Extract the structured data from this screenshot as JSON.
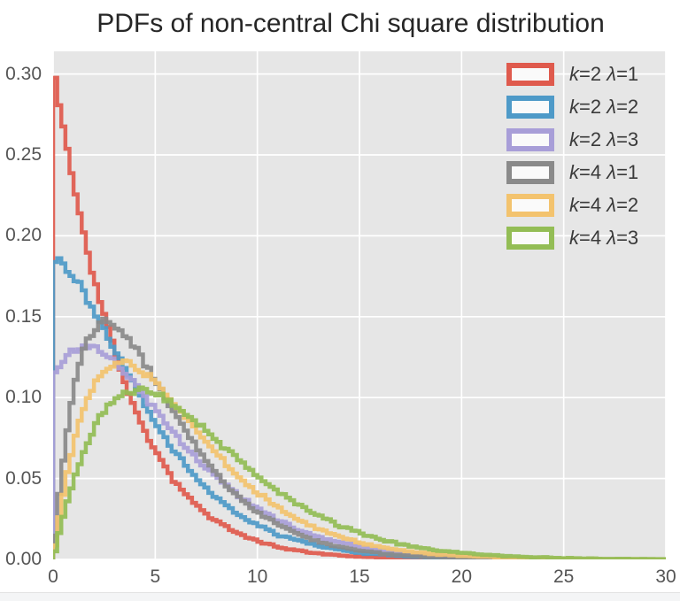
{
  "page": {
    "background": "#ffffff",
    "bottom_strip_color": "#f4f5f6"
  },
  "chart_data": {
    "type": "line",
    "render_style": "step-histogram",
    "title": "PDFs of non-central Chi square distribution",
    "xlabel": "",
    "ylabel": "",
    "xlim": [
      0,
      30
    ],
    "ylim": [
      0,
      0.314
    ],
    "xticks": {
      "values": [
        0,
        5,
        10,
        15,
        20,
        25,
        30
      ],
      "labels": [
        "0",
        "5",
        "10",
        "15",
        "20",
        "25",
        "30"
      ]
    },
    "yticks": {
      "values": [
        0,
        0.05,
        0.1,
        0.15,
        0.2,
        0.25,
        0.3
      ],
      "labels": [
        "0.00",
        "0.05",
        "0.10",
        "0.15",
        "0.20",
        "0.25",
        "0.30"
      ]
    },
    "grid": true,
    "legend_position": "upper-right",
    "bin_width": 0.2,
    "colors": {
      "plot_background": "#e6e6e6",
      "grid": "#ffffff",
      "tick_labels": "#555555",
      "title": "#262626"
    },
    "series": [
      {
        "label": "k=2 λ=1",
        "distribution": "noncentral-chi-square",
        "k": 2,
        "lambda": 1,
        "color": "#df5a4d",
        "key_points": {
          "y_at_x0": 0.303,
          "peak_x": 0.0,
          "peak_y": 0.303,
          "y_at_x5": 0.052,
          "y_at_x10": 0.013,
          "near_zero_by_x": 15
        }
      },
      {
        "label": "k=2 λ=2",
        "distribution": "noncentral-chi-square",
        "k": 2,
        "lambda": 2,
        "color": "#4e9ac8",
        "key_points": {
          "y_at_x0": 0.184,
          "peak_x": 0.0,
          "peak_y": 0.184,
          "y_at_x5": 0.074,
          "y_at_x10": 0.017,
          "near_zero_by_x": 18
        }
      },
      {
        "label": "k=2 λ=3",
        "distribution": "noncentral-chi-square",
        "k": 2,
        "lambda": 3,
        "color": "#a89ed8",
        "key_points": {
          "y_at_x0": 0.112,
          "peak_x": 2.2,
          "peak_y": 0.128,
          "y_at_x5": 0.089,
          "y_at_x10": 0.022,
          "near_zero_by_x": 18
        }
      },
      {
        "label": "k=4 λ=1",
        "distribution": "noncentral-chi-square",
        "k": 4,
        "lambda": 1,
        "color": "#8a8a8a",
        "key_points": {
          "y_at_x0": 0.0,
          "peak_x": 2.6,
          "peak_y": 0.147,
          "y_at_x5": 0.093,
          "y_at_x10": 0.023,
          "near_zero_by_x": 19
        }
      },
      {
        "label": "k=4 λ=2",
        "distribution": "noncentral-chi-square",
        "k": 4,
        "lambda": 2,
        "color": "#f3c36e",
        "key_points": {
          "y_at_x0": 0.0,
          "peak_x": 3.3,
          "peak_y": 0.123,
          "y_at_x5": 0.102,
          "y_at_x10": 0.032,
          "near_zero_by_x": 21
        }
      },
      {
        "label": "k=4 λ=3",
        "distribution": "noncentral-chi-square",
        "k": 4,
        "lambda": 3,
        "color": "#93bd55",
        "key_points": {
          "y_at_x0": 0.0,
          "peak_x": 4.1,
          "peak_y": 0.107,
          "y_at_x5": 0.105,
          "y_at_x10": 0.043,
          "near_zero_by_x": 25
        }
      }
    ]
  }
}
